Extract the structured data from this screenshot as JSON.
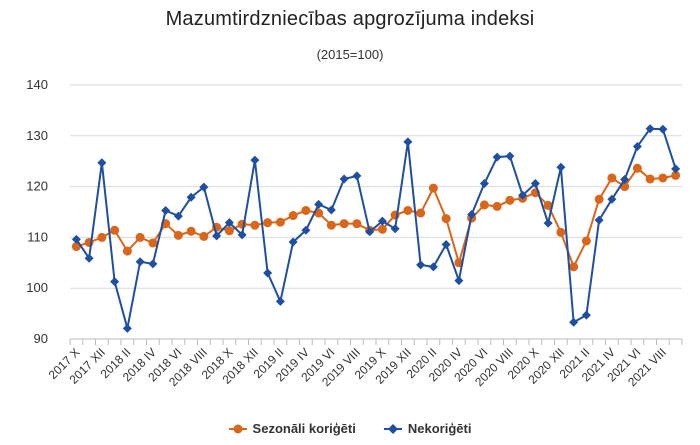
{
  "chart_data": {
    "type": "line",
    "title": "Mazumtirdzniecības apgrozījuma indeksi",
    "subtitle": "(2015=100)",
    "ylim": [
      90,
      140
    ],
    "yticks": [
      90,
      100,
      110,
      120,
      130,
      140
    ],
    "grid": true,
    "legend_position": "bottom",
    "x": [
      "2017 X",
      "2017 XI",
      "2017 XII",
      "2018 I",
      "2018 II",
      "2018 III",
      "2018 IV",
      "2018 V",
      "2018 VI",
      "2018 VII",
      "2018 VIII",
      "2018 IX",
      "2018 X",
      "2018 XI",
      "2018 XII",
      "2019 I",
      "2019 II",
      "2019 III",
      "2019 IV",
      "2019 V",
      "2019 VI",
      "2019 VII",
      "2019 VIII",
      "2019 IX",
      "2019 X",
      "2019 XI",
      "2019 XII",
      "2020 I",
      "2020 II",
      "2020 III",
      "2020 IV",
      "2020 V",
      "2020 VI",
      "2020 VII",
      "2020 VIII",
      "2020 IX",
      "2020 X",
      "2020 XI",
      "2020 XII",
      "2021 I",
      "2021 II",
      "2021 III",
      "2021 IV",
      "2021 V",
      "2021 VI",
      "2021 VII",
      "2021 VIII",
      "2021 IX"
    ],
    "tick_labels": [
      "2017 X",
      "2017 XII",
      "2018 II",
      "2018 IV",
      "2018 VI",
      "2018 VIII",
      "2018 X",
      "2018 XII",
      "2019 II",
      "2019 IV",
      "2019 VI",
      "2019 VIII",
      "2019 X",
      "2019 XII",
      "2020 II",
      "2020 IV",
      "2020 VI",
      "2020 VIII",
      "2020 X",
      "2020 XII",
      "2021 II",
      "2021 IV",
      "2021 VI",
      "2021 VIII"
    ],
    "series": [
      {
        "name": "Sezonāli koriģēti",
        "color": "#d9661a",
        "marker": "circle",
        "values": [
          108.2,
          109.0,
          110.0,
          111.4,
          107.3,
          110.0,
          108.9,
          112.7,
          110.4,
          111.2,
          110.2,
          112.0,
          111.3,
          112.6,
          112.4,
          112.9,
          113.0,
          114.3,
          115.3,
          114.8,
          112.4,
          112.7,
          112.7,
          111.4,
          111.6,
          114.4,
          115.3,
          114.8,
          119.7,
          113.7,
          105.0,
          113.8,
          116.4,
          116.1,
          117.3,
          117.7,
          118.8,
          116.3,
          111.0,
          104.2,
          109.3,
          117.5,
          121.7,
          120.0,
          123.6,
          121.5,
          121.7,
          122.2
        ]
      },
      {
        "name": "Nekoriģēti",
        "color": "#1f4fa0",
        "marker": "diamond",
        "values": [
          109.6,
          105.9,
          124.7,
          101.3,
          92.1,
          105.2,
          104.8,
          115.3,
          114.2,
          117.9,
          119.9,
          110.3,
          112.9,
          110.5,
          125.2,
          103.0,
          97.4,
          109.1,
          111.4,
          116.5,
          115.4,
          121.5,
          122.1,
          111.1,
          113.2,
          111.7,
          128.8,
          104.6,
          104.2,
          108.6,
          101.5,
          114.5,
          120.6,
          125.8,
          126.0,
          118.3,
          120.6,
          112.8,
          123.8,
          93.3,
          94.7,
          113.4,
          117.5,
          121.4,
          127.9,
          131.4,
          131.3,
          123.5
        ]
      }
    ]
  }
}
